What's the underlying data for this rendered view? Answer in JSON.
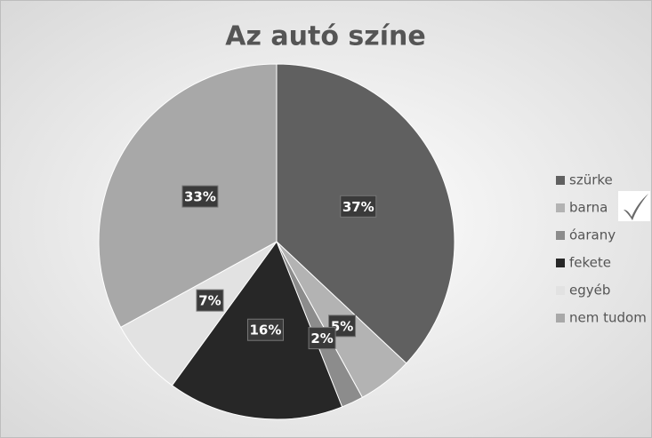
{
  "chart_data": {
    "type": "pie",
    "title": "Az autó színe",
    "categories": [
      "szürke",
      "barna",
      "óarany",
      "fekete",
      "egyéb",
      "nem tudom"
    ],
    "values": [
      37,
      5,
      2,
      16,
      7,
      33
    ],
    "value_labels": [
      "37%",
      "5%",
      "2%",
      "16%",
      "7%",
      "33%"
    ],
    "colors": [
      "#606060",
      "#b3b3b3",
      "#8c8c8c",
      "#272727",
      "#e2e2e2",
      "#a8a8a8"
    ],
    "legend": "right"
  }
}
